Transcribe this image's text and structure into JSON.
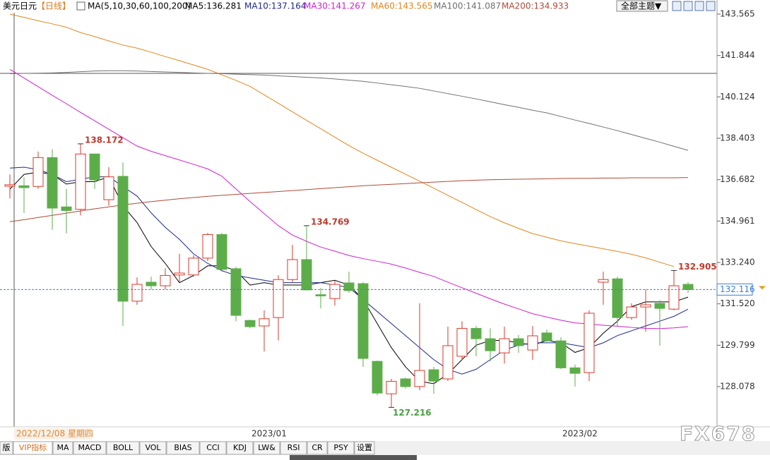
{
  "toolbar": {
    "symbol": "美元日元",
    "period": "【日线】",
    "indicator": "MA(5,10,30,60,100,200)",
    "theme": "全部主题▼"
  },
  "crosshair_date": "2022/12/08 星期四",
  "tabs": [
    "版",
    "VIP指标",
    "MA",
    "MACD",
    "BOLL",
    "VOL",
    "BIAS",
    "CCI",
    "KDJ",
    "LW&",
    "RSI",
    "CR",
    "PSY",
    "设置"
  ],
  "watermark": "FX678",
  "chart_data": {
    "type": "candlestick",
    "categories": [
      null,
      null,
      null,
      null,
      null,
      null,
      null,
      null,
      null,
      null,
      null,
      null,
      null,
      null,
      null,
      null,
      null,
      "2023/01",
      null,
      null,
      null,
      null,
      null,
      null,
      null,
      null,
      null,
      null,
      null,
      null,
      null,
      null,
      null,
      null,
      null,
      null,
      null,
      null,
      null,
      "2023/02",
      null,
      null,
      null,
      null,
      null,
      null,
      null,
      null,
      null
    ],
    "open": [
      136.41,
      136.43,
      136.4,
      137.6,
      135.55,
      135.45,
      137.75,
      135.85,
      136.82,
      131.63,
      132.42,
      132.27,
      132.72,
      132.72,
      133.42,
      134.4,
      132.98,
      130.83,
      130.6,
      130.95,
      132.53,
      133.36,
      131.9,
      131.74,
      132.39,
      132.36,
      129.13,
      127.78,
      128.4,
      128.08,
      128.78,
      128.4,
      129.34,
      130.5,
      130.07,
      129.48,
      130.07,
      129.6,
      130.31,
      129.98,
      128.86,
      128.66,
      132.42,
      132.56,
      130.95,
      131.39,
      131.54,
      131.3,
      132.33
    ],
    "high": [
      136.9,
      136.78,
      137.85,
      137.95,
      136.3,
      138.172,
      137.75,
      137.2,
      137.4,
      132.62,
      132.65,
      133.0,
      133.6,
      133.54,
      134.47,
      134.47,
      133.06,
      130.86,
      131.25,
      132.71,
      133.97,
      134.769,
      132.18,
      132.48,
      132.86,
      132.42,
      129.16,
      128.4,
      128.45,
      131.54,
      128.9,
      130.57,
      130.8,
      130.6,
      130.5,
      130.57,
      130.22,
      130.6,
      130.45,
      130.13,
      129.0,
      131.25,
      132.86,
      132.65,
      131.54,
      132.12,
      131.68,
      132.905,
      132.42
    ],
    "low": [
      135.9,
      135.3,
      136.3,
      134.6,
      134.45,
      135.2,
      136.3,
      135.6,
      130.6,
      131.48,
      132.12,
      132.12,
      132.42,
      132.65,
      133.3,
      132.86,
      130.8,
      130.5,
      129.54,
      130.0,
      132.42,
      132.07,
      131.33,
      131.45,
      131.98,
      128.9,
      127.72,
      127.216,
      128.0,
      127.93,
      127.78,
      128.31,
      129.19,
      129.34,
      129.13,
      129.04,
      129.48,
      129.19,
      129.93,
      128.81,
      128.08,
      128.31,
      131.48,
      130.57,
      130.86,
      130.36,
      129.78,
      131.25,
      131.98
    ],
    "close": [
      136.47,
      136.35,
      137.6,
      135.5,
      135.4,
      137.75,
      136.67,
      136.8,
      131.63,
      132.33,
      132.27,
      132.7,
      132.8,
      133.42,
      134.4,
      132.95,
      131.04,
      130.57,
      130.9,
      132.53,
      133.36,
      132.1,
      131.85,
      132.33,
      132.07,
      129.25,
      127.81,
      128.3,
      128.08,
      128.75,
      128.31,
      129.78,
      130.5,
      130.07,
      129.57,
      130.07,
      129.78,
      130.19,
      129.98,
      128.86,
      128.63,
      131.13,
      132.53,
      130.95,
      131.39,
      131.48,
      131.33,
      132.27,
      132.116
    ],
    "up_color": "#d83a2a",
    "down_color": "#5cad4a",
    "labeled_highs": [
      5,
      21,
      47
    ],
    "labeled_lows": [
      27
    ],
    "series": [
      {
        "name": "MA5:136.281",
        "color": "#000000",
        "values": [
          136.281,
          136.9,
          137.0,
          136.9,
          136.5,
          136.6,
          136.6,
          136.8,
          135.6,
          134.9,
          133.9,
          133.2,
          132.4,
          132.7,
          133.1,
          133.1,
          132.9,
          132.3,
          132.4,
          132.3,
          132.3,
          132.3,
          132.4,
          132.5,
          132.3,
          131.7,
          130.7,
          129.7,
          128.9,
          128.3,
          128.2,
          128.6,
          129.2,
          129.8,
          130.0,
          130.0,
          129.9,
          129.8,
          130.0,
          129.9,
          129.5,
          129.7,
          130.3,
          130.8,
          131.4,
          131.6,
          131.6,
          131.6,
          131.8
        ]
      },
      {
        "name": "MA10:137.164",
        "color": "#1c2a8c",
        "values": [
          137.164,
          137.2,
          137.1,
          136.9,
          136.6,
          136.7,
          136.8,
          136.8,
          136.4,
          136.0,
          135.3,
          134.7,
          134.2,
          133.6,
          133.2,
          132.9,
          132.7,
          132.6,
          132.5,
          132.4,
          132.4,
          132.4,
          132.4,
          132.3,
          132.2,
          131.7,
          131.2,
          130.7,
          130.2,
          129.7,
          129.2,
          128.8,
          128.6,
          128.8,
          129.2,
          129.6,
          129.8,
          129.9,
          129.9,
          129.9,
          129.8,
          129.7,
          129.9,
          130.2,
          130.4,
          130.6,
          130.8,
          131.0,
          131.3
        ]
      },
      {
        "name": "MA30:141.267",
        "color": "#d020d0",
        "values": [
          141.267,
          140.91,
          140.55,
          140.19,
          139.84,
          139.48,
          139.13,
          138.78,
          138.43,
          138.08,
          137.86,
          137.68,
          137.5,
          137.32,
          137.13,
          136.83,
          136.3,
          135.77,
          135.27,
          134.77,
          134.38,
          134.12,
          133.88,
          133.71,
          133.53,
          133.4,
          133.29,
          133.17,
          133.01,
          132.83,
          132.66,
          132.42,
          132.19,
          131.96,
          131.73,
          131.51,
          131.31,
          131.11,
          130.97,
          130.84,
          130.73,
          130.68,
          130.63,
          130.59,
          130.54,
          130.5,
          130.49,
          130.52,
          130.57
        ]
      },
      {
        "name": "MA60:143.565",
        "color": "#e0861a",
        "values": [
          143.565,
          143.43,
          143.29,
          143.16,
          143.02,
          142.8,
          142.63,
          142.45,
          142.28,
          142.15,
          141.98,
          141.8,
          141.63,
          141.45,
          141.27,
          141.04,
          140.81,
          140.56,
          140.21,
          139.86,
          139.5,
          139.15,
          138.8,
          138.45,
          138.1,
          137.78,
          137.49,
          137.2,
          136.91,
          136.62,
          136.33,
          136.03,
          135.74,
          135.44,
          135.15,
          134.89,
          134.66,
          134.44,
          134.29,
          134.14,
          134.02,
          133.92,
          133.81,
          133.7,
          133.58,
          133.43,
          133.25,
          133.07,
          null
        ]
      },
      {
        "name": "MA100:141.087",
        "color": "#707070",
        "values": [
          141.087,
          141.1,
          141.11,
          141.12,
          141.14,
          141.17,
          141.2,
          141.21,
          141.21,
          141.2,
          141.18,
          141.16,
          141.14,
          141.12,
          141.1,
          141.09,
          141.07,
          141.05,
          141.03,
          141.0,
          140.97,
          140.94,
          140.91,
          140.87,
          140.82,
          140.77,
          140.7,
          140.63,
          140.56,
          140.48,
          140.37,
          140.26,
          140.15,
          140.04,
          139.92,
          139.8,
          139.69,
          139.57,
          139.46,
          139.31,
          139.16,
          139.02,
          138.87,
          138.72,
          138.56,
          138.4,
          138.24,
          138.07,
          137.9
        ]
      },
      {
        "name": "MA200:134.933",
        "color": "#b04a38",
        "values": [
          134.933,
          135.02,
          135.11,
          135.2,
          135.29,
          135.38,
          135.47,
          135.55,
          135.63,
          135.7,
          135.77,
          135.83,
          135.89,
          135.94,
          135.99,
          136.03,
          136.07,
          136.11,
          136.15,
          136.19,
          136.23,
          136.27,
          136.31,
          136.35,
          136.39,
          136.43,
          136.46,
          136.49,
          136.52,
          136.55,
          136.58,
          136.61,
          136.64,
          136.66,
          136.68,
          136.69,
          136.7,
          136.71,
          136.72,
          136.73,
          136.74,
          136.74,
          136.75,
          136.75,
          136.76,
          136.76,
          136.76,
          136.76,
          136.77
        ]
      }
    ],
    "ylim": [
      126.406,
      144.152
    ],
    "yticks": [
      143.565,
      141.844,
      140.124,
      138.403,
      136.682,
      134.961,
      {
        "value": 133.24,
        "label": "133.240"
      },
      {
        "value": 131.52,
        "label": "131.520"
      },
      129.799,
      128.078
    ]
  }
}
